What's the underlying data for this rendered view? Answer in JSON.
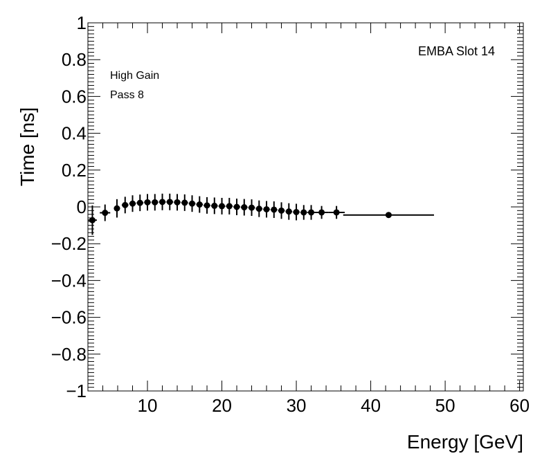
{
  "chart_data": {
    "type": "scatter",
    "title": "",
    "xlabel": "Energy [GeV]",
    "ylabel": "Time [ns]",
    "xlim": [
      2,
      60.5
    ],
    "ylim": [
      -1,
      1
    ],
    "x_ticks": [
      10,
      20,
      30,
      40,
      50,
      60
    ],
    "x_tick_labels": [
      "10",
      "20",
      "30",
      "40",
      "50",
      "60"
    ],
    "y_ticks": [
      -1,
      -0.8,
      -0.6,
      -0.4,
      -0.2,
      0,
      0.2,
      0.4,
      0.6,
      0.8,
      1
    ],
    "y_tick_labels": [
      "−1",
      "−0.8",
      "−0.6",
      "−0.4",
      "−0.2",
      "0",
      "0.2",
      "0.4",
      "0.6",
      "0.8",
      "1"
    ],
    "grid": false,
    "annotations": {
      "top_right": "EMBA Slot 14",
      "gain": "High Gain",
      "pass": "Pass 8"
    },
    "series": [
      {
        "name": "EMBA Slot 14",
        "points": [
          {
            "x": 2.6,
            "y": -0.072,
            "xerr": 0.6,
            "yerr": 0.08
          },
          {
            "x": 4.3,
            "y": -0.032,
            "xerr": 0.7,
            "yerr": 0.045
          },
          {
            "x": 5.9,
            "y": -0.008,
            "xerr": 0.4,
            "yerr": 0.05
          },
          {
            "x": 7.0,
            "y": 0.01,
            "xerr": 0.45,
            "yerr": 0.045
          },
          {
            "x": 8.0,
            "y": 0.018,
            "xerr": 0.45,
            "yerr": 0.045
          },
          {
            "x": 9.0,
            "y": 0.022,
            "xerr": 0.45,
            "yerr": 0.045
          },
          {
            "x": 10.0,
            "y": 0.025,
            "xerr": 0.45,
            "yerr": 0.045
          },
          {
            "x": 11.0,
            "y": 0.025,
            "xerr": 0.45,
            "yerr": 0.045
          },
          {
            "x": 12.0,
            "y": 0.027,
            "xerr": 0.45,
            "yerr": 0.045
          },
          {
            "x": 13.0,
            "y": 0.027,
            "xerr": 0.45,
            "yerr": 0.045
          },
          {
            "x": 14.0,
            "y": 0.025,
            "xerr": 0.45,
            "yerr": 0.045
          },
          {
            "x": 15.0,
            "y": 0.023,
            "xerr": 0.45,
            "yerr": 0.045
          },
          {
            "x": 16.0,
            "y": 0.018,
            "xerr": 0.45,
            "yerr": 0.045
          },
          {
            "x": 17.0,
            "y": 0.013,
            "xerr": 0.45,
            "yerr": 0.045
          },
          {
            "x": 18.0,
            "y": 0.008,
            "xerr": 0.45,
            "yerr": 0.045
          },
          {
            "x": 19.0,
            "y": 0.006,
            "xerr": 0.45,
            "yerr": 0.045
          },
          {
            "x": 20.0,
            "y": 0.004,
            "xerr": 0.45,
            "yerr": 0.045
          },
          {
            "x": 21.0,
            "y": 0.004,
            "xerr": 0.45,
            "yerr": 0.045
          },
          {
            "x": 22.0,
            "y": 0.0,
            "xerr": 0.45,
            "yerr": 0.045
          },
          {
            "x": 23.0,
            "y": -0.002,
            "xerr": 0.45,
            "yerr": 0.045
          },
          {
            "x": 24.0,
            "y": -0.004,
            "xerr": 0.45,
            "yerr": 0.045
          },
          {
            "x": 25.0,
            "y": -0.01,
            "xerr": 0.45,
            "yerr": 0.045
          },
          {
            "x": 26.0,
            "y": -0.013,
            "xerr": 0.45,
            "yerr": 0.045
          },
          {
            "x": 27.0,
            "y": -0.015,
            "xerr": 0.45,
            "yerr": 0.045
          },
          {
            "x": 28.0,
            "y": -0.02,
            "xerr": 0.45,
            "yerr": 0.045
          },
          {
            "x": 29.0,
            "y": -0.025,
            "xerr": 0.45,
            "yerr": 0.045
          },
          {
            "x": 30.0,
            "y": -0.028,
            "xerr": 0.45,
            "yerr": 0.045
          },
          {
            "x": 31.0,
            "y": -0.03,
            "xerr": 0.45,
            "yerr": 0.04
          },
          {
            "x": 32.0,
            "y": -0.03,
            "xerr": 0.5,
            "yerr": 0.04
          },
          {
            "x": 33.4,
            "y": -0.03,
            "xerr": 0.9,
            "yerr": 0.035
          },
          {
            "x": 35.4,
            "y": -0.03,
            "xerr": 1.1,
            "yerr": 0.035
          },
          {
            "x": 42.4,
            "y": -0.044,
            "xerr": 6.1,
            "yerr": 0.012
          }
        ]
      }
    ]
  }
}
